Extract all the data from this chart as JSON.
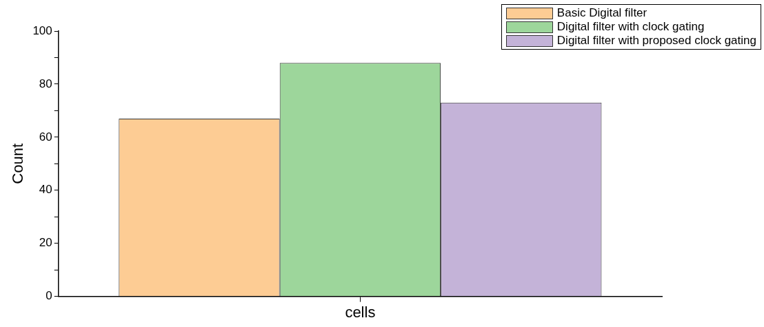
{
  "chart_data": {
    "type": "bar",
    "ylabel": "Count",
    "categories": [
      "cells"
    ],
    "series": [
      {
        "name": "Basic Digital filter",
        "color": "#fdcc94",
        "values": [
          67
        ]
      },
      {
        "name": "Digital filter with clock gating",
        "color": "#9dd69b",
        "values": [
          88
        ]
      },
      {
        "name": "Digital filter with proposed clock gating",
        "color": "#c4b3d8",
        "values": [
          73
        ]
      }
    ],
    "ylim": [
      0,
      100
    ],
    "yticks": [
      0,
      {
        "value": 10,
        "label": null
      },
      20,
      {
        "value": 30,
        "label": null
      },
      40,
      {
        "value": 50,
        "label": null
      },
      60,
      {
        "value": 70,
        "label": null
      },
      80,
      {
        "value": 90,
        "label": null
      },
      100
    ],
    "grid": false,
    "legend": "top right"
  }
}
